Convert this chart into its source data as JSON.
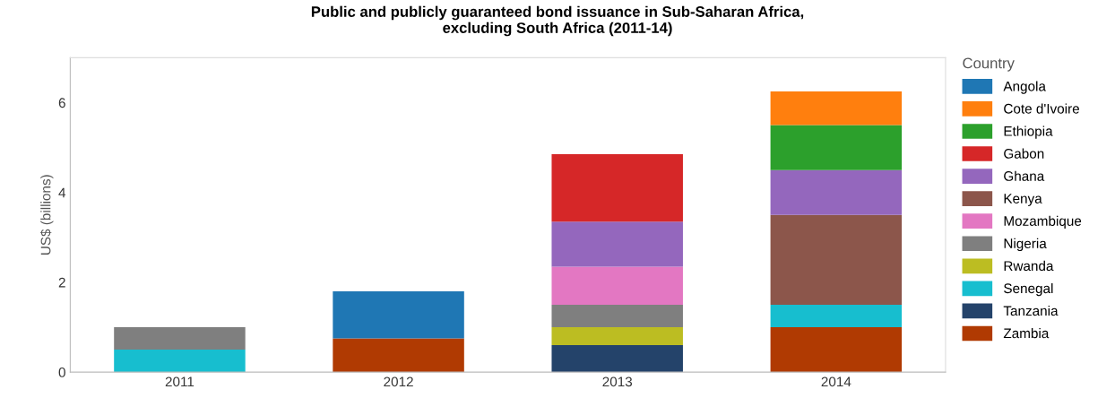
{
  "chart_data": {
    "type": "bar",
    "title": "Public and publicly guaranteed bond issuance in Sub-Saharan Africa,\nexcluding South Africa (2011-14)",
    "ylabel": "US$ (billions)",
    "legend_title": "Country",
    "legend": "right",
    "categories": [
      "2011",
      "2012",
      "2013",
      "2014"
    ],
    "stacked": true,
    "ylim": [
      0,
      7
    ],
    "yticks": [
      0,
      2,
      4,
      6
    ],
    "grid": false,
    "series": [
      {
        "name": "Zambia",
        "color": "#b03a02",
        "values": [
          null,
          0.75,
          null,
          1.0
        ]
      },
      {
        "name": "Tanzania",
        "color": "#24436a",
        "values": [
          null,
          null,
          0.6,
          null
        ]
      },
      {
        "name": "Senegal",
        "color": "#17becf",
        "values": [
          0.5,
          null,
          null,
          0.5
        ]
      },
      {
        "name": "Rwanda",
        "color": "#bcbd22",
        "values": [
          null,
          null,
          0.4,
          null
        ]
      },
      {
        "name": "Nigeria",
        "color": "#7f7f7f",
        "values": [
          0.5,
          null,
          0.5,
          null
        ]
      },
      {
        "name": "Mozambique",
        "color": "#e377c2",
        "values": [
          null,
          null,
          0.85,
          null
        ]
      },
      {
        "name": "Kenya",
        "color": "#8c564b",
        "values": [
          null,
          null,
          null,
          2.0
        ]
      },
      {
        "name": "Ghana",
        "color": "#9467bd",
        "values": [
          null,
          null,
          1.0,
          1.0
        ]
      },
      {
        "name": "Gabon",
        "color": "#d62728",
        "values": [
          null,
          null,
          1.5,
          null
        ]
      },
      {
        "name": "Ethiopia",
        "color": "#2ca02c",
        "values": [
          null,
          null,
          null,
          1.0
        ]
      },
      {
        "name": "Cote d'Ivoire",
        "color": "#ff7f0e",
        "values": [
          null,
          null,
          null,
          0.75
        ]
      },
      {
        "name": "Angola",
        "color": "#1f77b4",
        "values": [
          null,
          1.05,
          null,
          null
        ]
      }
    ]
  }
}
